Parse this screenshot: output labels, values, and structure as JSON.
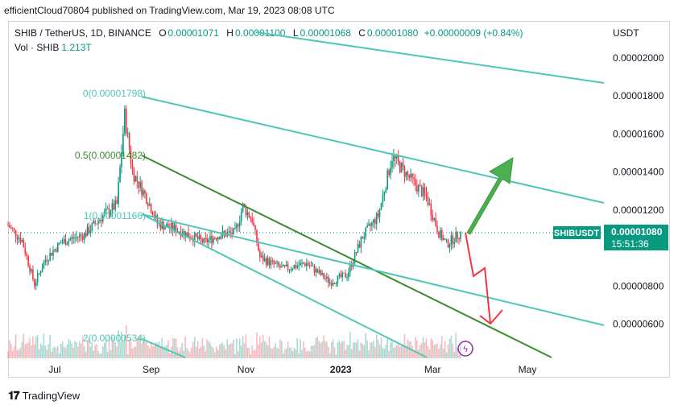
{
  "publisher_line": "efficientCloud70804 published on TradingView.com, Mar 19, 2023 08:08 UTC",
  "legend": {
    "symbol": "SHIB / TetherUS, 1D, BINANCE",
    "o_label": "O",
    "o": "0.00001071",
    "h_label": "H",
    "h": "0.00001100",
    "l_label": "L",
    "l": "0.00001068",
    "c_label": "C",
    "c": "0.00001080",
    "change": "+0.00000009 (+0.84%)"
  },
  "volume": {
    "label": "Vol · SHIB",
    "value": "1.213T"
  },
  "currency": "USDT",
  "price_tag": {
    "symbol": "SHIBUSDT",
    "price": "0.00001080",
    "countdown": "15:51:36"
  },
  "fib_labels": [
    "0(0.00001798)",
    "0.5(0.00001482)",
    "1(0.00001166)",
    "2(0.00000534)"
  ],
  "footer": {
    "brand": "TradingView"
  },
  "colors": {
    "up": "#089981",
    "down": "#f23645",
    "channel": "#4fc7b4",
    "midline": "#3a8c2c",
    "arrow_up": "#4caf50",
    "arrow_down": "#f23645"
  },
  "chart_data": {
    "type": "candlestick",
    "xlabel": "",
    "ylabel": "",
    "y_ticks": [
      "0.00002000",
      "0.00001800",
      "0.00001600",
      "0.00001400",
      "0.00001200",
      "0.00000800",
      "0.00000600"
    ],
    "x_ticks": [
      "Jul",
      "Sep",
      "Nov",
      "2023",
      "Mar",
      "May"
    ],
    "ylim": [
      4.2e-06,
      2.22e-05
    ],
    "x_dates": [
      "2022-06-01",
      "2022-07-01",
      "2022-08-15",
      "2022-09-01",
      "2022-11-01",
      "2023-01-01",
      "2023-02-05",
      "2023-03-01",
      "2023-03-19",
      "2023-05-01"
    ],
    "approx_close_series": [
      [
        "2022-06-01",
        1.12e-05
      ],
      [
        "2022-06-10",
        1.04e-05
      ],
      [
        "2022-06-18",
        8.1e-06
      ],
      [
        "2022-06-25",
        9.4e-06
      ],
      [
        "2022-07-05",
        1.03e-05
      ],
      [
        "2022-07-20",
        1.07e-05
      ],
      [
        "2022-08-01",
        1.17e-05
      ],
      [
        "2022-08-10",
        1.23e-05
      ],
      [
        "2022-08-15",
        1.7e-05
      ],
      [
        "2022-08-20",
        1.4e-05
      ],
      [
        "2022-08-30",
        1.25e-05
      ],
      [
        "2022-09-05",
        1.13e-05
      ],
      [
        "2022-09-20",
        1.09e-05
      ],
      [
        "2022-10-05",
        1.03e-05
      ],
      [
        "2022-10-15",
        1.07e-05
      ],
      [
        "2022-10-25",
        1.08e-05
      ],
      [
        "2022-10-30",
        1.22e-05
      ],
      [
        "2022-11-05",
        1.15e-05
      ],
      [
        "2022-11-10",
        9.5e-06
      ],
      [
        "2022-11-25",
        8.9e-06
      ],
      [
        "2022-12-10",
        9.2e-06
      ],
      [
        "2022-12-25",
        8.2e-06
      ],
      [
        "2023-01-05",
        8.6e-06
      ],
      [
        "2023-01-15",
        1.06e-05
      ],
      [
        "2023-01-25",
        1.17e-05
      ],
      [
        "2023-02-03",
        1.48e-05
      ],
      [
        "2023-02-15",
        1.36e-05
      ],
      [
        "2023-02-25",
        1.27e-05
      ],
      [
        "2023-03-05",
        1.08e-05
      ],
      [
        "2023-03-10",
        1.02e-05
      ],
      [
        "2023-03-19",
        1.08e-05
      ]
    ],
    "current_price": 1.08e-05,
    "annotations": [
      "descending channel",
      "projected breakout up",
      "projected breakdown down"
    ]
  }
}
